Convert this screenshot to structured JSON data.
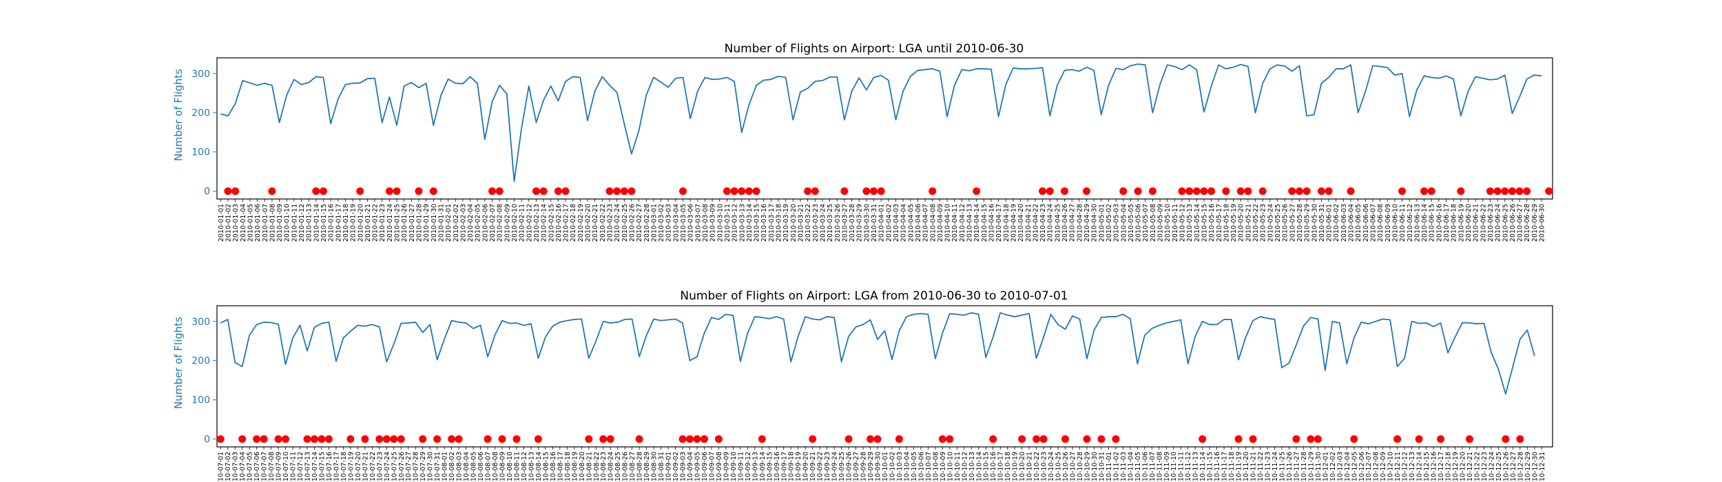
{
  "chart_data": [
    {
      "type": "line",
      "title": "Number of Flights on Airport: LGA until 2010-06-30",
      "xlabel": "",
      "ylabel": "Number of Flights",
      "x_start": "2010-01-01",
      "x_end": "2010-06-30",
      "yticks": [
        0,
        100,
        200,
        300
      ],
      "ylim": [
        -20,
        340
      ],
      "grid": false,
      "series": [
        {
          "type": "line",
          "color": "#1f77b4",
          "values": [
            197,
            192,
            223,
            282,
            276,
            270,
            275,
            270,
            175,
            245,
            285,
            272,
            277,
            292,
            290,
            172,
            235,
            272,
            275,
            276,
            287,
            288,
            175,
            240,
            168,
            268,
            277,
            264,
            275,
            168,
            243,
            286,
            275,
            274,
            292,
            274,
            132,
            228,
            270,
            248,
            25,
            160,
            268,
            175,
            232,
            268,
            230,
            280,
            292,
            290,
            180,
            255,
            292,
            270,
            252,
            172,
            95,
            155,
            245,
            290,
            278,
            265,
            288,
            290,
            185,
            255,
            290,
            285,
            286,
            290,
            280,
            150,
            220,
            270,
            283,
            285,
            293,
            290,
            182,
            253,
            262,
            280,
            282,
            291,
            291,
            182,
            255,
            289,
            258,
            290,
            295,
            283,
            182,
            255,
            293,
            308,
            310,
            312,
            306,
            190,
            270,
            310,
            307,
            312,
            312,
            311,
            190,
            272,
            314,
            312,
            312,
            313,
            315,
            192,
            270,
            308,
            310,
            306,
            316,
            308,
            195,
            270,
            313,
            310,
            320,
            324,
            322,
            200,
            272,
            322,
            318,
            310,
            322,
            310,
            202,
            268,
            322,
            312,
            316,
            323,
            318,
            200,
            275,
            312,
            322,
            319,
            306,
            320,
            192,
            195,
            275,
            290,
            312,
            312,
            322,
            200,
            254,
            320,
            318,
            315,
            296,
            300,
            190,
            258,
            294,
            290,
            288,
            294,
            286,
            192,
            255,
            292,
            288,
            284,
            286,
            296,
            198,
            240,
            286,
            296,
            294
          ]
        },
        {
          "type": "scatter",
          "color": "#ff0000",
          "points": [
            [
              "2010-01-02",
              0
            ],
            [
              "2010-01-03",
              0
            ],
            [
              "2010-01-08",
              0
            ],
            [
              "2010-01-14",
              0
            ],
            [
              "2010-01-15",
              0
            ],
            [
              "2010-01-20",
              0
            ],
            [
              "2010-01-24",
              0
            ],
            [
              "2010-01-25",
              0
            ],
            [
              "2010-01-28",
              0
            ],
            [
              "2010-01-30",
              0
            ],
            [
              "2010-02-07",
              0
            ],
            [
              "2010-02-08",
              0
            ],
            [
              "2010-02-13",
              0
            ],
            [
              "2010-02-14",
              0
            ],
            [
              "2010-02-16",
              0
            ],
            [
              "2010-02-17",
              0
            ],
            [
              "2010-02-23",
              0
            ],
            [
              "2010-02-24",
              0
            ],
            [
              "2010-02-25",
              0
            ],
            [
              "2010-02-26",
              0
            ],
            [
              "2010-03-05",
              0
            ],
            [
              "2010-03-11",
              0
            ],
            [
              "2010-03-12",
              0
            ],
            [
              "2010-03-13",
              0
            ],
            [
              "2010-03-14",
              0
            ],
            [
              "2010-03-15",
              0
            ],
            [
              "2010-03-22",
              0
            ],
            [
              "2010-03-23",
              0
            ],
            [
              "2010-03-27",
              0
            ],
            [
              "2010-03-30",
              0
            ],
            [
              "2010-03-31",
              0
            ],
            [
              "2010-04-01",
              0
            ],
            [
              "2010-04-08",
              0
            ],
            [
              "2010-04-14",
              0
            ],
            [
              "2010-04-23",
              0
            ],
            [
              "2010-04-24",
              0
            ],
            [
              "2010-04-26",
              0
            ],
            [
              "2010-04-29",
              0
            ],
            [
              "2010-05-04",
              0
            ],
            [
              "2010-05-06",
              0
            ],
            [
              "2010-05-08",
              0
            ],
            [
              "2010-05-12",
              0
            ],
            [
              "2010-05-13",
              0
            ],
            [
              "2010-05-14",
              0
            ],
            [
              "2010-05-15",
              0
            ],
            [
              "2010-05-16",
              0
            ],
            [
              "2010-05-18",
              0
            ],
            [
              "2010-05-20",
              0
            ],
            [
              "2010-05-21",
              0
            ],
            [
              "2010-05-23",
              0
            ],
            [
              "2010-05-27",
              0
            ],
            [
              "2010-05-28",
              0
            ],
            [
              "2010-05-29",
              0
            ],
            [
              "2010-05-31",
              0
            ],
            [
              "2010-06-01",
              0
            ],
            [
              "2010-06-04",
              0
            ],
            [
              "2010-06-11",
              0
            ],
            [
              "2010-06-14",
              0
            ],
            [
              "2010-06-15",
              0
            ],
            [
              "2010-06-19",
              0
            ],
            [
              "2010-06-23",
              0
            ],
            [
              "2010-06-24",
              0
            ],
            [
              "2010-06-25",
              0
            ],
            [
              "2010-06-26",
              0
            ],
            [
              "2010-06-27",
              0
            ],
            [
              "2010-06-28",
              0
            ],
            [
              "2010-07-01",
              0
            ]
          ]
        }
      ]
    },
    {
      "type": "line",
      "title": "Number of Flights on Airport: LGA from 2010-06-30 to 2010-07-01",
      "xlabel": "",
      "ylabel": "Number of Flights",
      "x_start": "2010-07-01",
      "x_end": "2010-12-31",
      "yticks": [
        0,
        100,
        200,
        300
      ],
      "ylim": [
        -20,
        340
      ],
      "grid": false,
      "series": [
        {
          "type": "line",
          "color": "#1f77b4",
          "values": [
            296,
            305,
            195,
            185,
            265,
            292,
            298,
            297,
            293,
            190,
            258,
            290,
            225,
            285,
            295,
            298,
            198,
            258,
            275,
            290,
            288,
            292,
            286,
            197,
            242,
            295,
            296,
            298,
            272,
            292,
            202,
            255,
            302,
            298,
            296,
            282,
            290,
            210,
            265,
            302,
            295,
            296,
            290,
            294,
            206,
            260,
            288,
            298,
            302,
            305,
            306,
            206,
            250,
            300,
            296,
            298,
            305,
            306,
            210,
            265,
            306,
            302,
            304,
            306,
            296,
            200,
            210,
            270,
            310,
            305,
            318,
            315,
            198,
            270,
            312,
            310,
            307,
            312,
            306,
            197,
            262,
            312,
            306,
            304,
            312,
            310,
            197,
            262,
            286,
            292,
            304,
            254,
            276,
            203,
            276,
            312,
            318,
            320,
            318,
            205,
            270,
            320,
            318,
            316,
            322,
            318,
            208,
            260,
            322,
            316,
            312,
            316,
            320,
            206,
            260,
            318,
            292,
            280,
            314,
            306,
            205,
            278,
            310,
            312,
            312,
            318,
            307,
            192,
            264,
            282,
            290,
            296,
            300,
            304,
            192,
            262,
            300,
            292,
            292,
            305,
            305,
            202,
            260,
            302,
            312,
            308,
            305,
            182,
            194,
            240,
            288,
            310,
            306,
            175,
            300,
            296,
            192,
            258,
            298,
            294,
            300,
            306,
            304,
            185,
            206,
            300,
            295,
            296,
            287,
            296,
            220,
            260,
            297,
            296,
            294,
            295,
            221,
            178,
            115,
            185,
            255,
            278,
            212
          ]
        },
        {
          "type": "scatter",
          "color": "#ff0000",
          "points": [
            [
              "2010-07-01",
              0
            ],
            [
              "2010-07-04",
              0
            ],
            [
              "2010-07-06",
              0
            ],
            [
              "2010-07-07",
              0
            ],
            [
              "2010-07-09",
              0
            ],
            [
              "2010-07-10",
              0
            ],
            [
              "2010-07-13",
              0
            ],
            [
              "2010-07-14",
              0
            ],
            [
              "2010-07-15",
              0
            ],
            [
              "2010-07-16",
              0
            ],
            [
              "2010-07-19",
              0
            ],
            [
              "2010-07-21",
              0
            ],
            [
              "2010-07-23",
              0
            ],
            [
              "2010-07-24",
              0
            ],
            [
              "2010-07-25",
              0
            ],
            [
              "2010-07-26",
              0
            ],
            [
              "2010-07-29",
              0
            ],
            [
              "2010-07-31",
              0
            ],
            [
              "2010-08-02",
              0
            ],
            [
              "2010-08-03",
              0
            ],
            [
              "2010-08-07",
              0
            ],
            [
              "2010-08-09",
              0
            ],
            [
              "2010-08-11",
              0
            ],
            [
              "2010-08-14",
              0
            ],
            [
              "2010-08-21",
              0
            ],
            [
              "2010-08-23",
              0
            ],
            [
              "2010-08-24",
              0
            ],
            [
              "2010-08-28",
              0
            ],
            [
              "2010-09-03",
              0
            ],
            [
              "2010-09-04",
              0
            ],
            [
              "2010-09-05",
              0
            ],
            [
              "2010-09-06",
              0
            ],
            [
              "2010-09-08",
              0
            ],
            [
              "2010-09-14",
              0
            ],
            [
              "2010-09-21",
              0
            ],
            [
              "2010-09-26",
              0
            ],
            [
              "2010-09-29",
              0
            ],
            [
              "2010-09-30",
              0
            ],
            [
              "2010-10-03",
              0
            ],
            [
              "2010-10-09",
              0
            ],
            [
              "2010-10-10",
              0
            ],
            [
              "2010-10-16",
              0
            ],
            [
              "2010-10-20",
              0
            ],
            [
              "2010-10-22",
              0
            ],
            [
              "2010-10-23",
              0
            ],
            [
              "2010-10-26",
              0
            ],
            [
              "2010-10-29",
              0
            ],
            [
              "2010-10-31",
              0
            ],
            [
              "2010-11-02",
              0
            ],
            [
              "2010-11-14",
              0
            ],
            [
              "2010-11-19",
              0
            ],
            [
              "2010-11-21",
              0
            ],
            [
              "2010-11-27",
              0
            ],
            [
              "2010-11-29",
              0
            ],
            [
              "2010-11-30",
              0
            ],
            [
              "2010-12-05",
              0
            ],
            [
              "2010-12-11",
              0
            ],
            [
              "2010-12-14",
              0
            ],
            [
              "2010-12-17",
              0
            ],
            [
              "2010-12-21",
              0
            ],
            [
              "2010-12-26",
              0
            ],
            [
              "2010-12-28",
              0
            ]
          ]
        }
      ]
    }
  ]
}
